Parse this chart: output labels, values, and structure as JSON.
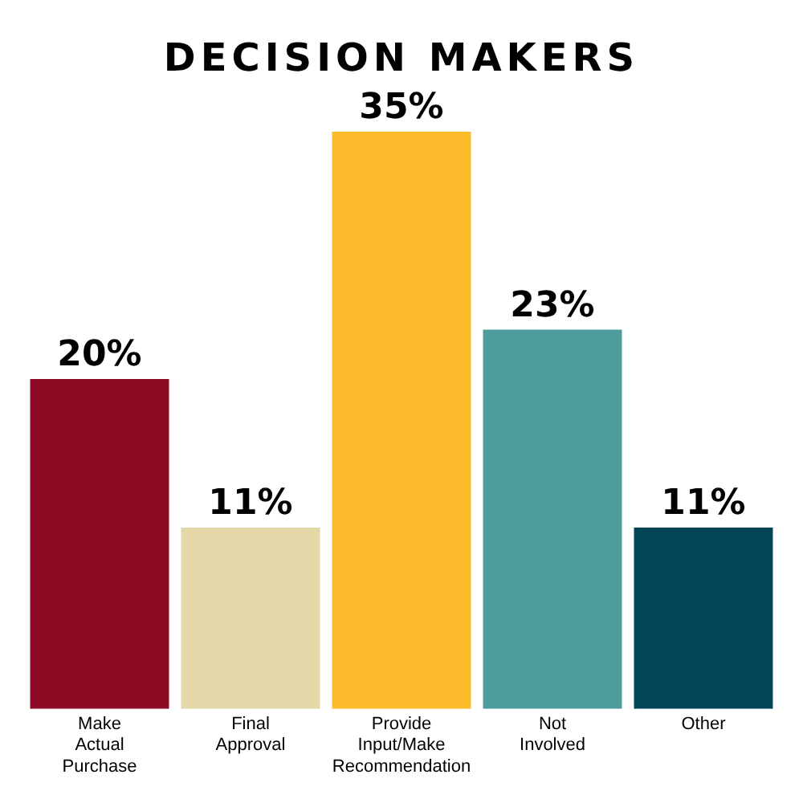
{
  "chart_data": {
    "type": "bar",
    "title": "DECISION MAKERS",
    "categories": [
      "Make Actual Purchase",
      "Final Approval",
      "Provide Input/Make Recommendation",
      "Not Involved",
      "Other"
    ],
    "values": [
      20,
      11,
      35,
      23,
      11
    ],
    "colors": [
      "#8b0c24",
      "#e5d8a8",
      "#fbbb2a",
      "#4e9b9b",
      "#014557"
    ],
    "value_labels": [
      "20%",
      "11%",
      "35%",
      "23%",
      "11%"
    ],
    "grid": false,
    "legend": false
  }
}
